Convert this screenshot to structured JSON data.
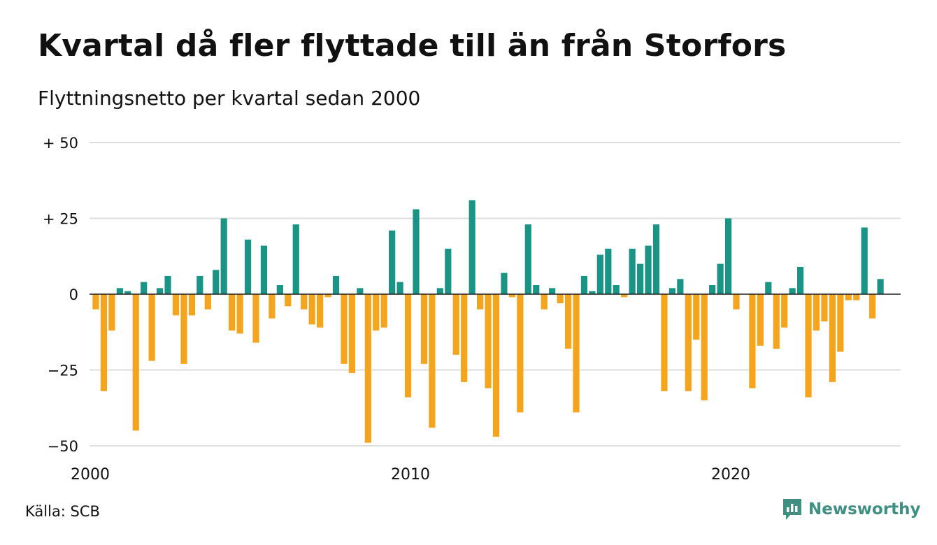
{
  "header": {
    "title": "Kvartal då fler flyttade till än från Storfors",
    "subtitle": "Flyttningsnetto per kvartal sedan 2000"
  },
  "footer": {
    "source": "Källa: SCB",
    "brand": "Newsworthy"
  },
  "colors": {
    "positive": "#1a9585",
    "negative": "#f5a41d",
    "grid": "#dddddd",
    "brand": "#3f8f83"
  },
  "icons": {
    "brand_logo": "bar-chart-speech-bubble-icon"
  },
  "chart_data": {
    "type": "bar",
    "x_start": "2000 Q1",
    "periodicity": "quarterly",
    "ylim": [
      -50,
      50
    ],
    "y_ticks": [
      {
        "value": 50,
        "label": "+ 50"
      },
      {
        "value": 25,
        "label": "+ 25"
      },
      {
        "value": 0,
        "label": "0"
      },
      {
        "value": -25,
        "label": "−25"
      },
      {
        "value": -50,
        "label": "−50"
      }
    ],
    "x_ticks": [
      {
        "index": 0,
        "label": "2000"
      },
      {
        "index": 40,
        "label": "2010"
      },
      {
        "index": 80,
        "label": "2020"
      }
    ],
    "grid": true,
    "legend": "none",
    "values": [
      -5,
      -32,
      -12,
      2,
      1,
      -45,
      4,
      -22,
      2,
      6,
      -7,
      -23,
      -7,
      6,
      -5,
      8,
      25,
      -12,
      -13,
      18,
      -16,
      16,
      -8,
      3,
      -4,
      23,
      -5,
      -10,
      -11,
      -1,
      6,
      -23,
      -26,
      2,
      -49,
      -12,
      -11,
      21,
      4,
      -34,
      28,
      -23,
      -44,
      2,
      15,
      -20,
      -29,
      31,
      -5,
      -31,
      -47,
      7,
      -1,
      -39,
      23,
      3,
      -5,
      2,
      -3,
      -18,
      -39,
      6,
      1,
      13,
      15,
      3,
      -1,
      15,
      10,
      16,
      23,
      -32,
      2,
      5,
      -32,
      -15,
      -35,
      3,
      10,
      25,
      -5,
      0,
      -31,
      -17,
      4,
      -18,
      -11,
      2,
      9,
      -34,
      -12,
      -9,
      -29,
      -19,
      -2,
      -2,
      22,
      -8,
      5
    ]
  }
}
